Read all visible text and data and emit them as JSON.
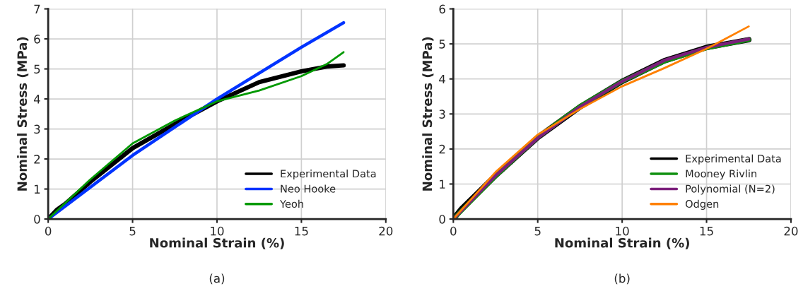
{
  "chart_data": [
    {
      "type": "line",
      "xlabel": "Nominal Strain (%)",
      "ylabel": "Nominal Stress (MPa)",
      "xlim": [
        0,
        20
      ],
      "ylim": [
        0,
        7
      ],
      "xticks": [
        0,
        5,
        10,
        15,
        20
      ],
      "yticks": [
        0,
        1,
        2,
        3,
        4,
        5,
        6,
        7
      ],
      "grid": true,
      "legend": "bottom right",
      "marker": "none",
      "annotations": [
        "(a)"
      ],
      "series": [
        {
          "name": "Experimental Data",
          "color": "#000000",
          "x": [
            0,
            0.5,
            1,
            2.5,
            5,
            7.5,
            10,
            12.5,
            15,
            16.5,
            17.5
          ],
          "values": [
            0,
            0.3,
            0.5,
            1.24,
            2.36,
            3.16,
            3.92,
            4.56,
            4.92,
            5.08,
            5.12
          ]
        },
        {
          "name": "Neo Hooke",
          "color": "#0033ff",
          "x": [
            0,
            5,
            10,
            15,
            17.5
          ],
          "values": [
            0,
            2.12,
            4.0,
            5.72,
            6.54
          ]
        },
        {
          "name": "Yeoh",
          "color": "#009900",
          "x": [
            0,
            2.5,
            5,
            7.5,
            10,
            12.5,
            15,
            16.5,
            17.5
          ],
          "values": [
            0,
            1.32,
            2.52,
            3.28,
            3.92,
            4.28,
            4.76,
            5.16,
            5.56
          ]
        }
      ]
    },
    {
      "type": "line",
      "xlabel": "Nominal Strain (%)",
      "ylabel": "Nominal Stress (MPa)",
      "xlim": [
        0,
        20
      ],
      "ylim": [
        0,
        6
      ],
      "xticks": [
        0,
        5,
        10,
        15,
        20
      ],
      "yticks": [
        0,
        1,
        2,
        3,
        4,
        5,
        6
      ],
      "grid": true,
      "legend": "bottom right",
      "marker": "none",
      "annotations": [
        "(b)"
      ],
      "series": [
        {
          "name": "Experimental Data",
          "color": "#000000",
          "x": [
            0,
            0.5,
            2.5,
            5,
            7.5,
            10,
            12.5,
            15,
            17.5
          ],
          "values": [
            0,
            0.3,
            1.24,
            2.33,
            3.2,
            3.93,
            4.52,
            4.9,
            5.12
          ]
        },
        {
          "name": "Mooney Rivlin",
          "color": "#109010",
          "x": [
            0,
            2.5,
            5,
            7.5,
            10,
            12.5,
            15,
            17.5
          ],
          "values": [
            0,
            1.22,
            2.33,
            3.22,
            3.93,
            4.5,
            4.88,
            5.12
          ]
        },
        {
          "name": "Polynomial (N=2)",
          "color": "#7b1f7b",
          "x": [
            0,
            2.5,
            5,
            7.5,
            10,
            12.5,
            15,
            17.5
          ],
          "values": [
            0,
            1.24,
            2.31,
            3.2,
            3.93,
            4.53,
            4.9,
            5.14
          ]
        },
        {
          "name": "Odgen",
          "color": "#ff8000",
          "x": [
            0,
            2.5,
            5,
            7.5,
            10,
            12.5,
            15,
            17.5
          ],
          "values": [
            0,
            1.34,
            2.41,
            3.14,
            3.79,
            4.31,
            4.86,
            5.5
          ]
        }
      ]
    }
  ]
}
